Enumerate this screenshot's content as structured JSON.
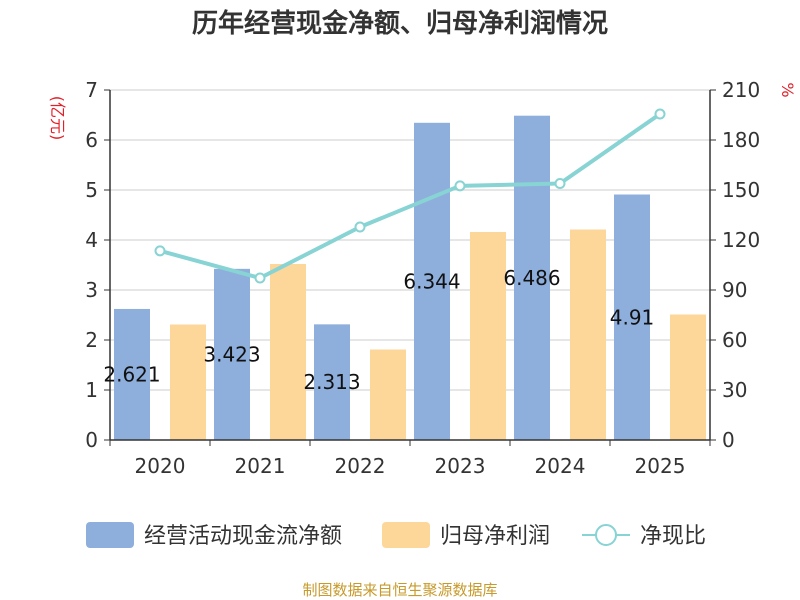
{
  "chart_data": {
    "type": "bar",
    "title": "历年经营现金净额、归母净利润情况",
    "categories": [
      "2020",
      "2021",
      "2022",
      "2023",
      "2024",
      "2025"
    ],
    "left_axis": {
      "unit": "(亿元)",
      "ylim": [
        0,
        7
      ],
      "ticks": [
        "0",
        "1",
        "2",
        "3",
        "4",
        "5",
        "6",
        "7"
      ]
    },
    "right_axis": {
      "unit": "%",
      "ylim": [
        0,
        210
      ],
      "ticks": [
        "0",
        "30",
        "60",
        "90",
        "120",
        "150",
        "180",
        "210"
      ]
    },
    "grid": true,
    "legend_position": "bottom",
    "series": [
      {
        "name": "经营活动现金流净额",
        "type": "bar",
        "axis": "left",
        "color": "#8eaedc",
        "values": [
          2.621,
          3.423,
          2.313,
          6.344,
          6.486,
          4.91
        ],
        "labels": [
          "2.621",
          "3.423",
          "2.313",
          "6.344",
          "6.486",
          "4.91"
        ]
      },
      {
        "name": "归母净利润",
        "type": "bar",
        "axis": "left",
        "color": "#fdd699",
        "values": [
          2.31,
          3.52,
          1.81,
          4.16,
          4.21,
          2.51
        ]
      },
      {
        "name": "净现比",
        "type": "line",
        "axis": "right",
        "color": "#88d3d3",
        "values": [
          113.5,
          97.2,
          127.8,
          152.5,
          153.9,
          195.6
        ]
      }
    ],
    "source": "制图数据来自恒生聚源数据库"
  }
}
